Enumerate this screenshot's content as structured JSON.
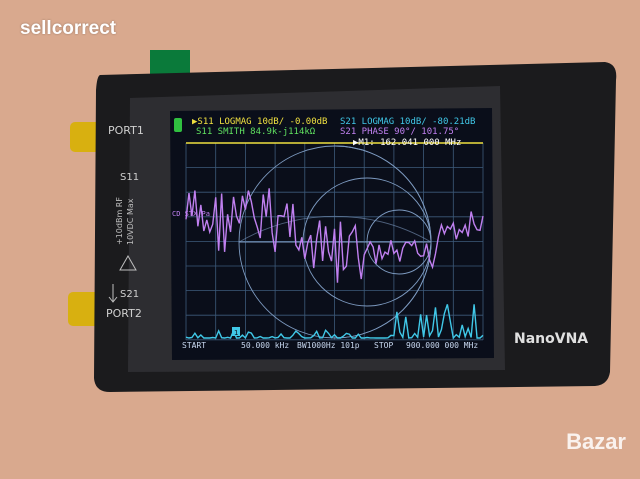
{
  "watermark": "sellcorrect",
  "watermark_bottom": "Bazar",
  "device": {
    "brand": "NanoVNA",
    "port1": "PORT1",
    "port2": "PORT2",
    "s11": "S11",
    "s21": "S21",
    "rf_max": "+10dBm RF",
    "dc_max": "10VDC Max"
  },
  "screen": {
    "trace1": "▶S11 LOGMAG 10dB/ -0.00dB",
    "trace2": "S21 LOGMAG 10dB/ -80.21dB",
    "trace3": "S11 SMITH 84.9k-j114kΩ",
    "trace4": "S21 PHASE 90°/ 101.75°",
    "marker": "▶M1: 162.041 000 MHz",
    "side_label": "CD\nSTX\nPa",
    "start_label": "START",
    "start_value": "50.000 kHz",
    "bandwidth": "BW1000Hz 101p",
    "stop_label": "STOP",
    "stop_value": "900.000 000 MHz",
    "marker_num": "1",
    "colors": {
      "trace1": "#f0e040",
      "trace2": "#40c8e8",
      "trace3": "#60e060",
      "trace4": "#c080f0",
      "background": "#0a0e1a"
    }
  }
}
